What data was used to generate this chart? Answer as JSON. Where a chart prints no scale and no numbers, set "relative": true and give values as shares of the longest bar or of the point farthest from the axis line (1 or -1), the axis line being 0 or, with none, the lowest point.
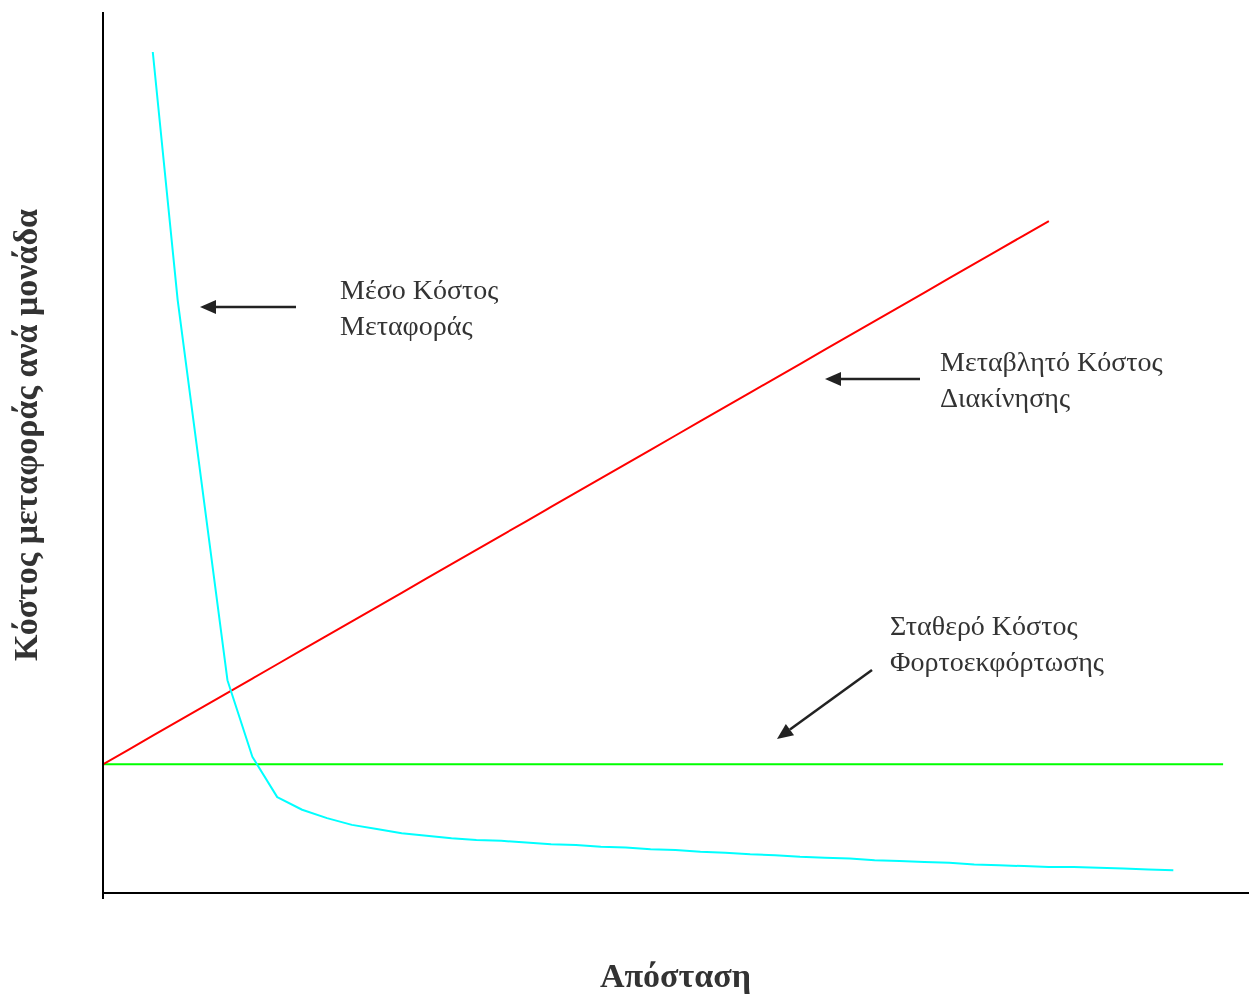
{
  "chart_data": {
    "type": "line",
    "relative": true,
    "xlabel": "Απόσταση",
    "ylabel": "Κόστος μεταφοράς ανά μονάδα",
    "categories": [
      null,
      null,
      null,
      null,
      null,
      null,
      null,
      null,
      null,
      null,
      null,
      null,
      null,
      null,
      null,
      null,
      null,
      null,
      null,
      null,
      null,
      null,
      null,
      null,
      null,
      null,
      null,
      null,
      null,
      null,
      null,
      null,
      null,
      null,
      null,
      null,
      null,
      null,
      null,
      null,
      null,
      null,
      null,
      null,
      null,
      null,
      null
    ],
    "series": [
      {
        "color": "#00ffff",
        "values": [
          null,
          null,
          1,
          0.705,
          0.479,
          0.253,
          0.162,
          0.114,
          0.099,
          0.089,
          0.081,
          0.076,
          0.071,
          0.068,
          0.065,
          0.063,
          0.062,
          0.06,
          0.058,
          0.057,
          0.055,
          0.054,
          0.052,
          0.051,
          0.049,
          0.048,
          0.046,
          0.045,
          0.043,
          0.042,
          0.041,
          0.039,
          0.038,
          0.037,
          0.036,
          0.034,
          0.033,
          0.032,
          0.031,
          0.031,
          0.03,
          0.029,
          0.028,
          0.027,
          null,
          null,
          null
        ]
      },
      {
        "color": "#ff0000",
        "values": [
          0.153,
          0.17,
          0.187,
          0.204,
          0.221,
          0.238,
          0.255,
          0.272,
          0.289,
          0.306,
          0.323,
          0.34,
          0.357,
          0.374,
          0.391,
          0.408,
          0.425,
          0.442,
          0.459,
          0.476,
          0.493,
          0.51,
          0.527,
          0.544,
          0.561,
          0.578,
          0.595,
          0.612,
          0.629,
          0.646,
          0.663,
          0.68,
          0.697,
          0.714,
          0.731,
          0.748,
          0.765,
          0.782,
          0.799,
          null,
          null,
          null,
          null,
          null,
          null,
          null,
          null
        ]
      },
      {
        "color": "#00ff00",
        "values": [
          0.153,
          0.153,
          0.153,
          0.153,
          0.153,
          0.153,
          0.153,
          0.153,
          0.153,
          0.153,
          0.153,
          0.153,
          0.153,
          0.153,
          0.153,
          0.153,
          0.153,
          0.153,
          0.153,
          0.153,
          0.153,
          0.153,
          0.153,
          0.153,
          0.153,
          0.153,
          0.153,
          0.153,
          0.153,
          0.153,
          0.153,
          0.153,
          0.153,
          0.153,
          0.153,
          0.153,
          0.153,
          0.153,
          0.153,
          0.153,
          0.153,
          0.153,
          0.153,
          0.153,
          0.153,
          0.153,
          null
        ]
      }
    ],
    "annotations": [
      "Μέσο Κόστος\nΜεταφοράς",
      "Μεταβλητό Κόστος\nΔιακίνησης",
      "Σταθερό Κόστος\nΦορτοεκφόρτωσης"
    ],
    "grid": false,
    "legend": false,
    "marker": "none",
    "line_style": "solid"
  }
}
